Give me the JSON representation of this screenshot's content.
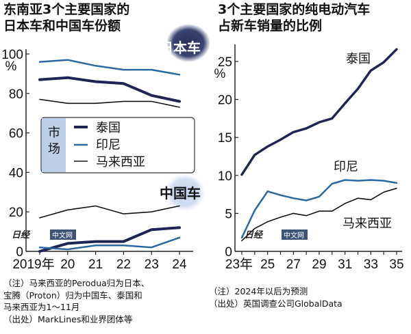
{
  "chart_data": [
    {
      "type": "line",
      "title": "东南亚3个主要国家的日本车和中国车份额",
      "title_lines": [
        "东南亚3个主要国家的",
        "日本车和中国车份额"
      ],
      "ylabel": "%",
      "ylim": [
        0,
        100
      ],
      "yticks": [
        "0",
        "20",
        "40",
        "60",
        "80",
        "100"
      ],
      "x": [
        2019,
        2020,
        2021,
        2022,
        2023,
        2024
      ],
      "xticks": [
        "2019年",
        "20",
        "21",
        "22",
        "23",
        "24"
      ],
      "legend_title": "市场",
      "legend_title_lines": [
        "市",
        "场"
      ],
      "legend": [
        "泰国",
        "印尼",
        "马来西亚"
      ],
      "group_labels": {
        "japan": "日本车",
        "china": "中国车"
      },
      "series": [
        {
          "name": "泰国",
          "group": "日本车",
          "color": "#1e2552",
          "width": 4,
          "values": [
            87,
            88,
            86,
            85,
            79,
            76
          ]
        },
        {
          "name": "印尼",
          "group": "日本车",
          "color": "#2b68a0",
          "width": 2.5,
          "values": [
            96,
            97,
            94,
            92,
            92,
            89.5
          ]
        },
        {
          "name": "马来西亚",
          "group": "日本车",
          "color": "#111111",
          "width": 1.6,
          "values": [
            77,
            75,
            75,
            76,
            76,
            73
          ]
        },
        {
          "name": "泰国",
          "group": "中国车",
          "color": "#1e2552",
          "width": 4,
          "values": [
            0,
            4,
            5,
            5,
            11,
            12
          ]
        },
        {
          "name": "印尼",
          "group": "中国车",
          "color": "#2b68a0",
          "width": 2.5,
          "values": [
            2,
            1,
            3,
            3,
            2,
            7
          ]
        },
        {
          "name": "马来西亚",
          "group": "中国车",
          "color": "#111111",
          "width": 1.6,
          "values": [
            17,
            21,
            23,
            19,
            20,
            23
          ]
        }
      ],
      "notes": [
        "（注）马来西亚的Perodua归为日本、",
        "宝腾（Proton）归为中国车、泰国和",
        "马来西亚为1～11月",
        "（出处）MarkLines和业界团体等"
      ]
    },
    {
      "type": "line",
      "title": "3个主要国家的纯电动汽车占新车销量的比例",
      "title_lines": [
        "3个主要国家的纯电动汽车",
        "占新车销量的比例"
      ],
      "ylabel": "%",
      "ylim": [
        0,
        27
      ],
      "yticks": [
        "0",
        "5",
        "10",
        "15",
        "20",
        "25"
      ],
      "x": [
        2023,
        2024,
        2025,
        2026,
        2027,
        2028,
        2029,
        2030,
        2031,
        2032,
        2033,
        2034,
        2035
      ],
      "xticks": [
        "23年",
        "25",
        "27",
        "29",
        "31",
        "33",
        "35"
      ],
      "series": [
        {
          "name": "泰国",
          "color": "#1e2552",
          "width": 3.5,
          "values": [
            10.1,
            12.7,
            13.8,
            14.7,
            15.7,
            16.2,
            17.0,
            17.5,
            19.5,
            21.4,
            23.8,
            24.9,
            26.6
          ]
        },
        {
          "name": "印尼",
          "color": "#2b68a0",
          "width": 2.5,
          "values": [
            1.8,
            5.4,
            7.9,
            7.4,
            7.0,
            6.7,
            7.2,
            8.9,
            9.4,
            9.3,
            9.4,
            9.3,
            9.0
          ]
        },
        {
          "name": "马来西亚",
          "color": "#111111",
          "width": 1.6,
          "values": [
            1.4,
            3.0,
            3.9,
            4.5,
            5.0,
            4.7,
            5.3,
            5.3,
            6.3,
            7.0,
            6.8,
            7.8,
            8.3
          ]
        }
      ],
      "notes": [
        "（注）2024年以后为预测",
        "（出处）英国调查公司GlobalData"
      ]
    }
  ],
  "watermark": "日经中文网",
  "watermark_parts": {
    "logo": "日经",
    "badge": "中文网"
  }
}
